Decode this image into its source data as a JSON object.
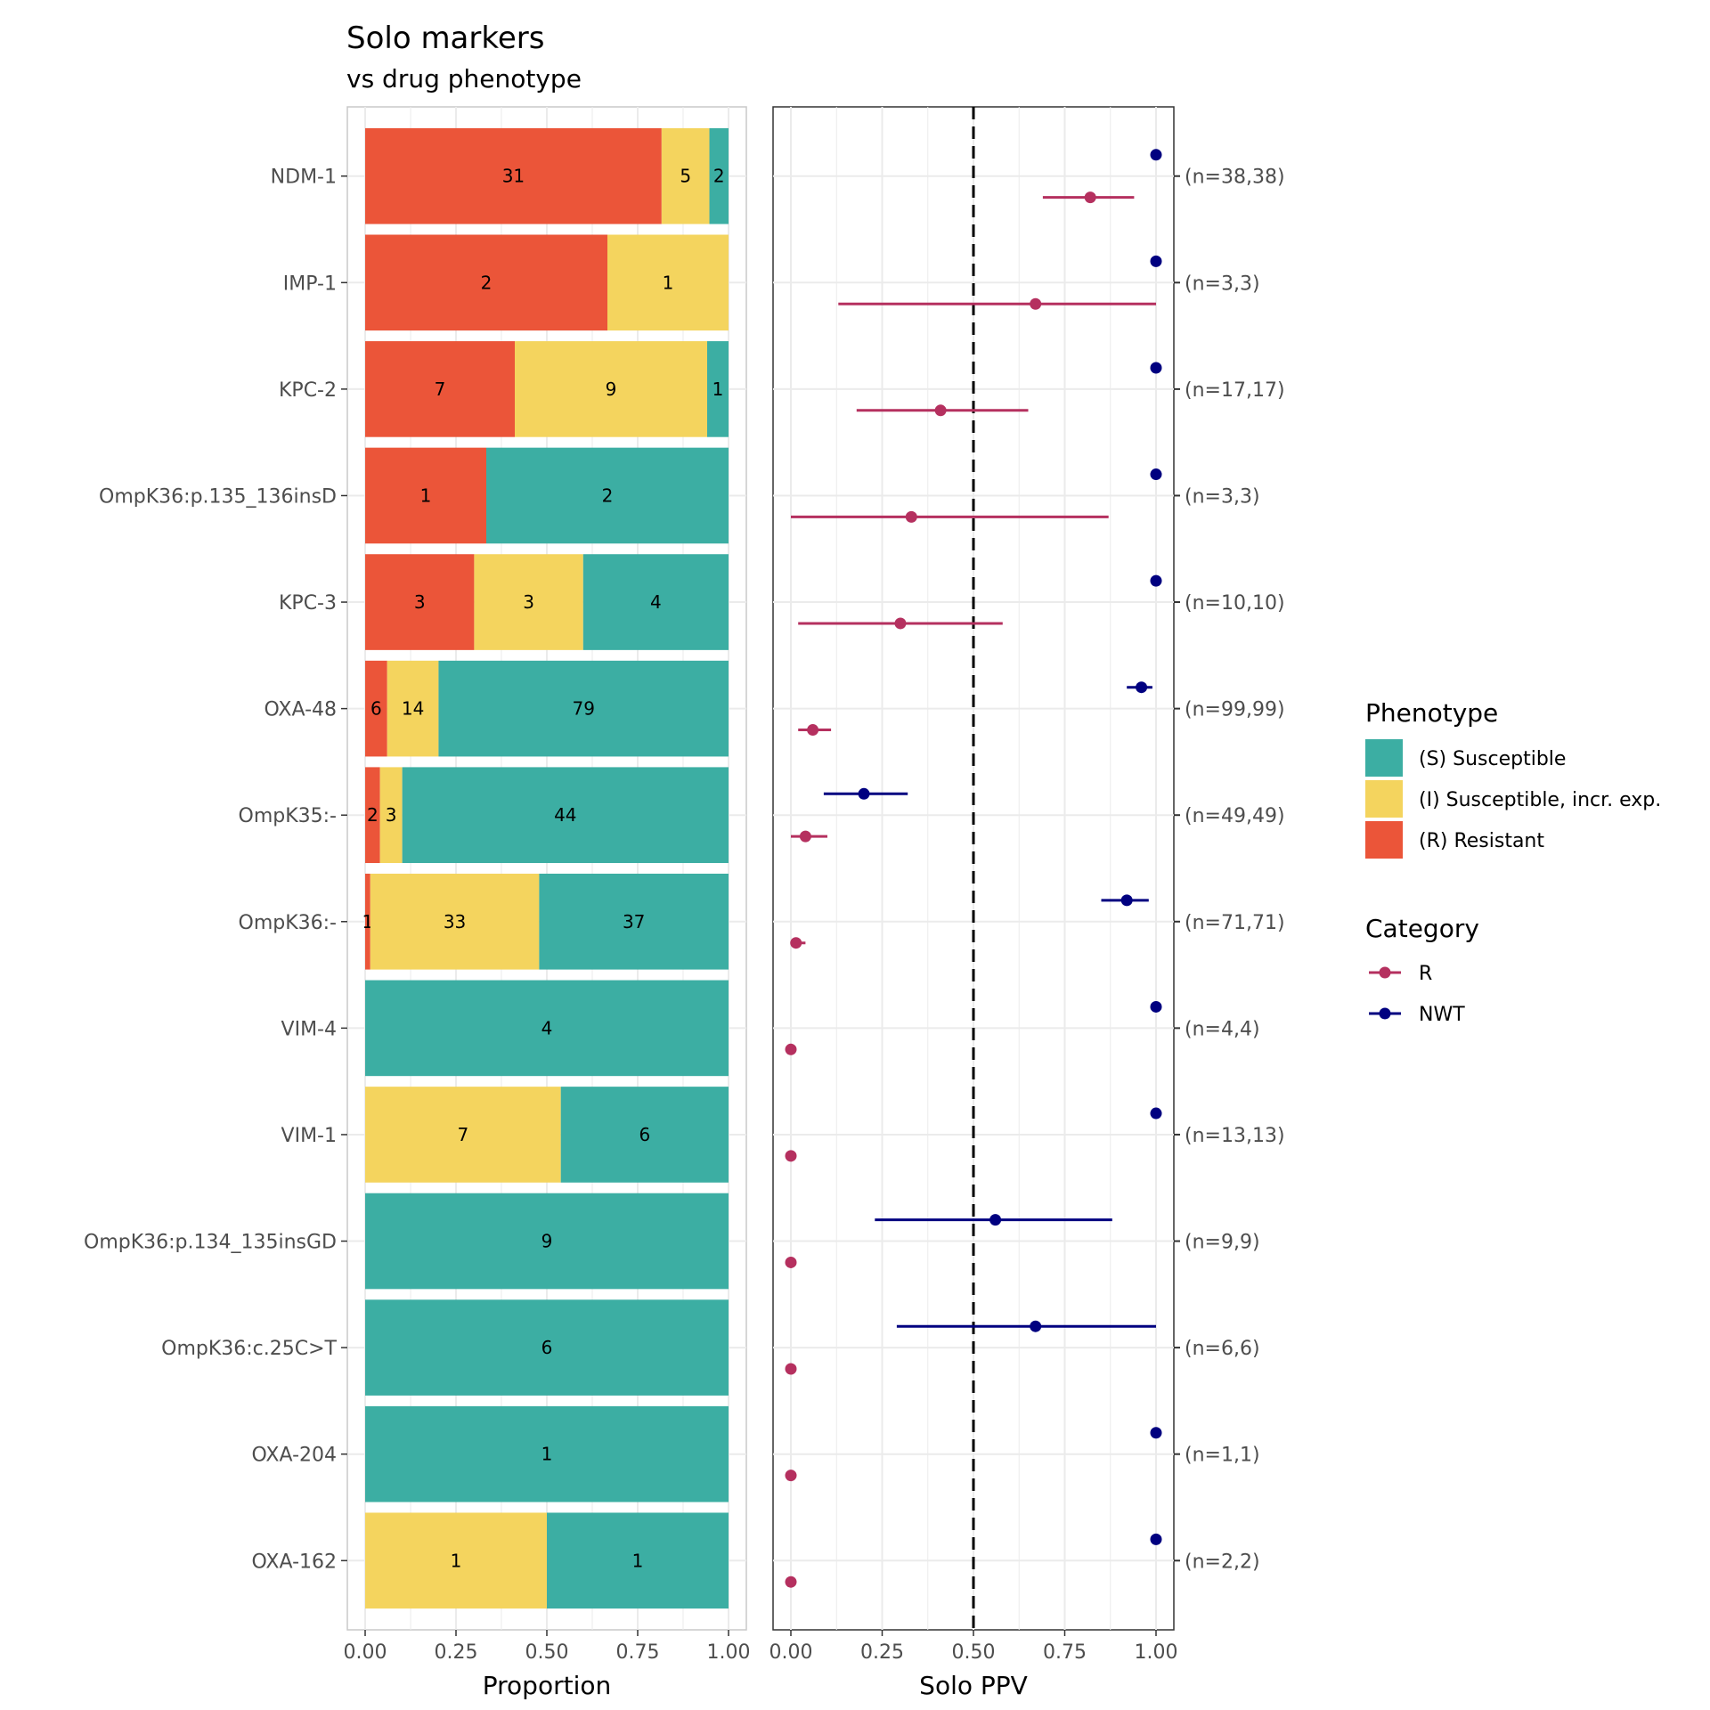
{
  "chart_data": [
    {
      "type": "bar",
      "orientation": "horizontal",
      "stacked": "proportion",
      "title": "Solo markers",
      "subtitle": "vs drug phenotype",
      "xlabel": "Proportion",
      "ylabel": "",
      "xlim": [
        0,
        1
      ],
      "xticks": [
        "0.00",
        "0.25",
        "0.50",
        "0.75",
        "1.00"
      ],
      "grid": true,
      "categories": [
        "NDM-1",
        "IMP-1",
        "KPC-2",
        "OmpK36:p.135_136insD",
        "KPC-3",
        "OXA-48",
        "OmpK35:-",
        "OmpK36:-",
        "VIM-4",
        "VIM-1",
        "OmpK36:p.134_135insGD",
        "OmpK36:c.25C>T",
        "OXA-204",
        "OXA-162"
      ],
      "series": [
        {
          "name": "(R) Resistant",
          "key": "R",
          "color": "#EB5539",
          "values": [
            31,
            2,
            7,
            1,
            3,
            6,
            2,
            1,
            0,
            0,
            0,
            0,
            0,
            0
          ]
        },
        {
          "name": "(I) Susceptible, incr. exp.",
          "key": "I",
          "color": "#F4D45E",
          "values": [
            5,
            1,
            9,
            0,
            3,
            14,
            3,
            33,
            0,
            7,
            0,
            0,
            0,
            1
          ]
        },
        {
          "name": "(S) Susceptible",
          "key": "S",
          "color": "#3CAEA3",
          "values": [
            2,
            0,
            1,
            2,
            4,
            79,
            44,
            37,
            4,
            6,
            9,
            6,
            1,
            1
          ]
        }
      ],
      "legend": {
        "title": "Phenotype",
        "placement": "right",
        "entries": [
          "(S) Susceptible",
          "(I) Susceptible, incr. exp.",
          "(R) Resistant"
        ]
      }
    },
    {
      "type": "scatter",
      "subtype": "pointrange",
      "title": "",
      "xlabel": "Solo PPV",
      "xlim": [
        0,
        1
      ],
      "xticks": [
        "0.00",
        "0.25",
        "0.50",
        "0.75",
        "1.00"
      ],
      "grid": true,
      "reference_line": {
        "x": 0.5,
        "style": "dashed",
        "color": "#000000"
      },
      "categories": [
        "NDM-1",
        "IMP-1",
        "KPC-2",
        "OmpK36:p.135_136insD",
        "KPC-3",
        "OXA-48",
        "OmpK35:-",
        "OmpK36:-",
        "VIM-4",
        "VIM-1",
        "OmpK36:p.134_135insGD",
        "OmpK36:c.25C>T",
        "OXA-204",
        "OXA-162"
      ],
      "right_axis_labels": [
        "(n=38,38)",
        "(n=3,3)",
        "(n=17,17)",
        "(n=3,3)",
        "(n=10,10)",
        "(n=99,99)",
        "(n=49,49)",
        "(n=71,71)",
        "(n=4,4)",
        "(n=13,13)",
        "(n=9,9)",
        "(n=6,6)",
        "(n=1,1)",
        "(n=2,2)"
      ],
      "series": [
        {
          "name": "NWT",
          "color": "#000080",
          "points": [
            {
              "x": 1.0,
              "lo": null,
              "hi": null
            },
            {
              "x": 1.0,
              "lo": null,
              "hi": null
            },
            {
              "x": 1.0,
              "lo": null,
              "hi": null
            },
            {
              "x": 1.0,
              "lo": null,
              "hi": null
            },
            {
              "x": 1.0,
              "lo": null,
              "hi": null
            },
            {
              "x": 0.96,
              "lo": 0.92,
              "hi": 0.99
            },
            {
              "x": 0.2,
              "lo": 0.09,
              "hi": 0.32
            },
            {
              "x": 0.92,
              "lo": 0.85,
              "hi": 0.98
            },
            {
              "x": 1.0,
              "lo": null,
              "hi": null
            },
            {
              "x": 1.0,
              "lo": null,
              "hi": null
            },
            {
              "x": 0.56,
              "lo": 0.23,
              "hi": 0.88
            },
            {
              "x": 0.67,
              "lo": 0.29,
              "hi": 1.0
            },
            {
              "x": 1.0,
              "lo": null,
              "hi": null
            },
            {
              "x": 1.0,
              "lo": null,
              "hi": null
            }
          ]
        },
        {
          "name": "R",
          "color": "#B5305F",
          "points": [
            {
              "x": 0.82,
              "lo": 0.69,
              "hi": 0.94
            },
            {
              "x": 0.67,
              "lo": 0.13,
              "hi": 1.0
            },
            {
              "x": 0.41,
              "lo": 0.18,
              "hi": 0.65
            },
            {
              "x": 0.33,
              "lo": 0.0,
              "hi": 0.87
            },
            {
              "x": 0.3,
              "lo": 0.02,
              "hi": 0.58
            },
            {
              "x": 0.06,
              "lo": 0.02,
              "hi": 0.11
            },
            {
              "x": 0.04,
              "lo": 0.0,
              "hi": 0.1
            },
            {
              "x": 0.014,
              "lo": 0.0,
              "hi": 0.04
            },
            {
              "x": 0.0,
              "lo": null,
              "hi": null
            },
            {
              "x": 0.0,
              "lo": null,
              "hi": null
            },
            {
              "x": 0.0,
              "lo": null,
              "hi": null
            },
            {
              "x": 0.0,
              "lo": null,
              "hi": null
            },
            {
              "x": 0.0,
              "lo": null,
              "hi": null
            },
            {
              "x": 0.0,
              "lo": null,
              "hi": null
            }
          ]
        }
      ],
      "legend": {
        "title": "Category",
        "placement": "right",
        "entries": [
          "R",
          "NWT"
        ]
      }
    }
  ]
}
